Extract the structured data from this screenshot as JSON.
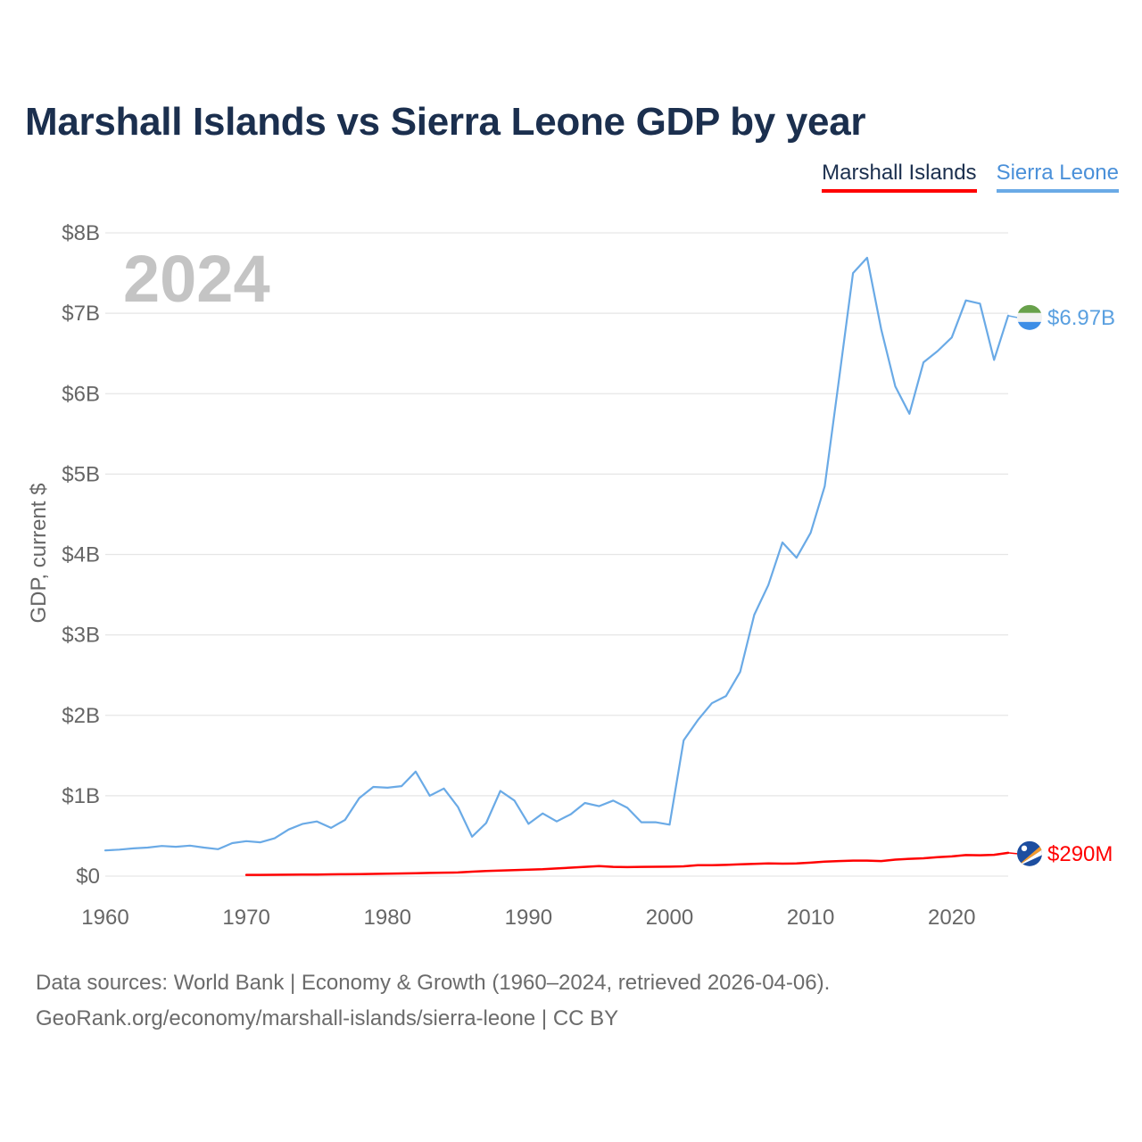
{
  "chart_data": {
    "type": "line",
    "title": "Marshall Islands vs Sierra Leone GDP by year",
    "ylabel": "GDP, current $",
    "xlabel": "",
    "xlim": [
      1960,
      2024
    ],
    "ylim": [
      0,
      8
    ],
    "y_unit": "billion USD",
    "x_ticks": [
      "1960",
      "1970",
      "1980",
      "1990",
      "2000",
      "2010",
      "2020"
    ],
    "x_tick_values": [
      1960,
      1970,
      1980,
      1990,
      2000,
      2010,
      2020
    ],
    "y_ticks": [
      "$0",
      "$1B",
      "$2B",
      "$3B",
      "$4B",
      "$5B",
      "$6B",
      "$7B",
      "$8B"
    ],
    "y_tick_values": [
      0,
      1,
      2,
      3,
      4,
      5,
      6,
      7,
      8
    ],
    "grid": true,
    "legend_position": "top-right",
    "year_watermark": "2024",
    "series": [
      {
        "name": "Marshall Islands",
        "color": "#ff0000",
        "end_label": "$290M",
        "flag_icon": "marshall-islands-flag-icon",
        "x": [
          1970,
          1971,
          1972,
          1973,
          1974,
          1975,
          1976,
          1977,
          1978,
          1979,
          1980,
          1981,
          1982,
          1983,
          1984,
          1985,
          1986,
          1987,
          1988,
          1989,
          1990,
          1991,
          1992,
          1993,
          1994,
          1995,
          1996,
          1997,
          1998,
          1999,
          2000,
          2001,
          2002,
          2003,
          2004,
          2005,
          2006,
          2007,
          2008,
          2009,
          2010,
          2011,
          2012,
          2013,
          2014,
          2015,
          2016,
          2017,
          2018,
          2019,
          2020,
          2021,
          2022,
          2023,
          2024
        ],
        "values": [
          0.015,
          0.016,
          0.017,
          0.018,
          0.019,
          0.02,
          0.022,
          0.023,
          0.025,
          0.028,
          0.03,
          0.033,
          0.037,
          0.04,
          0.043,
          0.046,
          0.055,
          0.063,
          0.07,
          0.074,
          0.08,
          0.085,
          0.095,
          0.105,
          0.115,
          0.125,
          0.115,
          0.112,
          0.115,
          0.116,
          0.118,
          0.122,
          0.135,
          0.135,
          0.14,
          0.147,
          0.152,
          0.158,
          0.155,
          0.158,
          0.168,
          0.18,
          0.188,
          0.193,
          0.193,
          0.188,
          0.205,
          0.215,
          0.222,
          0.235,
          0.245,
          0.262,
          0.26,
          0.265,
          0.29
        ]
      },
      {
        "name": "Sierra Leone",
        "color": "#6aaae6",
        "end_label": "$6.97B",
        "flag_icon": "sierra-leone-flag-icon",
        "x": [
          1960,
          1961,
          1962,
          1963,
          1964,
          1965,
          1966,
          1967,
          1968,
          1969,
          1970,
          1971,
          1972,
          1973,
          1974,
          1975,
          1976,
          1977,
          1978,
          1979,
          1980,
          1981,
          1982,
          1983,
          1984,
          1985,
          1986,
          1987,
          1988,
          1989,
          1990,
          1991,
          1992,
          1993,
          1994,
          1995,
          1996,
          1997,
          1998,
          1999,
          2000,
          2001,
          2002,
          2003,
          2004,
          2005,
          2006,
          2007,
          2008,
          2009,
          2010,
          2011,
          2012,
          2013,
          2014,
          2015,
          2016,
          2017,
          2018,
          2019,
          2020,
          2021,
          2022,
          2023,
          2024
        ],
        "values": [
          0.32,
          0.33,
          0.345,
          0.355,
          0.375,
          0.365,
          0.38,
          0.355,
          0.335,
          0.41,
          0.435,
          0.42,
          0.47,
          0.58,
          0.65,
          0.68,
          0.6,
          0.7,
          0.97,
          1.11,
          1.1,
          1.12,
          1.3,
          1.0,
          1.09,
          0.86,
          0.49,
          0.66,
          1.06,
          0.94,
          0.65,
          0.78,
          0.68,
          0.77,
          0.91,
          0.87,
          0.94,
          0.85,
          0.67,
          0.67,
          0.64,
          1.69,
          1.94,
          2.15,
          2.24,
          2.54,
          3.25,
          3.62,
          4.15,
          3.96,
          4.27,
          4.85,
          6.17,
          7.5,
          7.69,
          6.8,
          6.09,
          5.75,
          6.39,
          6.53,
          6.7,
          7.16,
          7.12,
          6.42,
          6.97
        ]
      }
    ]
  },
  "legend": {
    "marshall_label": "Marshall Islands",
    "sierra_label": "Sierra Leone"
  },
  "source": {
    "line1": "Data sources: World Bank | Economy & Growth (1960–2024, retrieved 2026-04-06).",
    "line2": "GeoRank.org/economy/marshall-islands/sierra-leone | CC BY"
  }
}
